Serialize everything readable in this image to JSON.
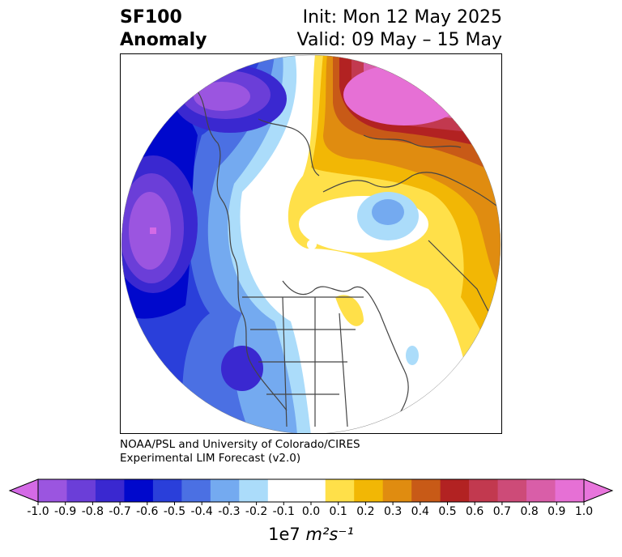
{
  "title": {
    "variable": "SF100",
    "subtitle": "Anomaly",
    "init": "Init: Mon 12 May 2025",
    "valid": "Valid: 09 May – 15 May"
  },
  "credit": {
    "line1": "NOAA/PSL and University of Colorado/CIRES",
    "line2": "Experimental LIM Forecast (v2.0)"
  },
  "colorbar": {
    "tick_labels": [
      "-1.0",
      "-0.9",
      "-0.8",
      "-0.7",
      "-0.6",
      "-0.5",
      "-0.4",
      "-0.3",
      "-0.2",
      "-0.1",
      "0.0",
      "0.1",
      "0.2",
      "0.3",
      "0.4",
      "0.5",
      "0.6",
      "0.7",
      "0.8",
      "0.9",
      "1.0"
    ],
    "colors": [
      "#9b55e0",
      "#6b3ed8",
      "#3a28d0",
      "#0008cc",
      "#2a3fda",
      "#4b70e3",
      "#74aaf0",
      "#abdcfa",
      "#ffffff",
      "#ffffff",
      "#ffe049",
      "#f2b705",
      "#e08c10",
      "#c85a17",
      "#b22222",
      "#c2394f",
      "#cd4b78",
      "#d95ea8",
      "#e670d5"
    ],
    "extend_low_color": "#d46ae6",
    "extend_high_color": "#e875dc",
    "units_prefix": "1e7",
    "units_math": "m²s⁻¹"
  },
  "map": {
    "projection": "north-polar-stereographic",
    "field": "streamfunction anomaly at 100 hPa"
  }
}
